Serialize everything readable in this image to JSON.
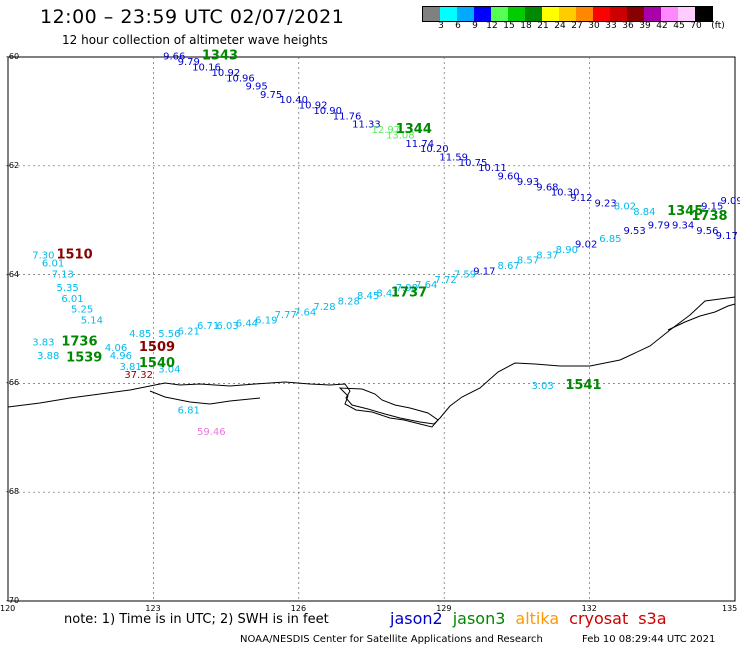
{
  "title": "12:00 – 23:59 UTC 02/07/2021",
  "subtitle": "12 hour collection of altimeter wave heights",
  "scale": {
    "unit": "(ft)",
    "swatches": [
      {
        "color": "#808080"
      },
      {
        "color": "#00ffff"
      },
      {
        "color": "#00aaff"
      },
      {
        "color": "#0000ff"
      },
      {
        "color": "#55ff55"
      },
      {
        "color": "#00cc00"
      },
      {
        "color": "#008800"
      },
      {
        "color": "#ffff00"
      },
      {
        "color": "#ffcc00"
      },
      {
        "color": "#ff8800"
      },
      {
        "color": "#ff0000"
      },
      {
        "color": "#cc0000"
      },
      {
        "color": "#880000"
      },
      {
        "color": "#aa00aa"
      },
      {
        "color": "#ff88ff"
      },
      {
        "color": "#ffccff"
      },
      {
        "color": "#000000"
      }
    ],
    "ticks": [
      "3",
      "6",
      "9",
      "12",
      "15",
      "18",
      "21",
      "24",
      "27",
      "30",
      "33",
      "36",
      "39",
      "42",
      "45",
      "70"
    ]
  },
  "axes": {
    "lat": [
      "-60",
      "-62",
      "-64",
      "-66",
      "-68",
      "-70"
    ],
    "lon": [
      "120",
      "123",
      "126",
      "129",
      "132",
      "135"
    ]
  },
  "note": "note:  1) Time is in UTC;  2) SWH is in feet",
  "legend": [
    {
      "name": "jason2",
      "color": "#0000cc"
    },
    {
      "name": "jason3",
      "color": "#008800"
    },
    {
      "name": "altika",
      "color": "#ff9900"
    },
    {
      "name": "cryosat",
      "color": "#cc0000"
    },
    {
      "name": "s3a",
      "color": "#cc0000"
    }
  ],
  "footer_left": "NOAA/NESDIS Center for Satellite Applications and Research",
  "footer_right": "Feb 10 08:29:44 UTC 2021",
  "passes": [
    {
      "label": "1343",
      "lon": 124.0,
      "lat": -60.05,
      "color": "#008800"
    },
    {
      "label": "1344",
      "lon": 128.0,
      "lat": -61.4,
      "color": "#008800"
    },
    {
      "label": "1345",
      "lon": 133.6,
      "lat": -62.9,
      "color": "#008800"
    },
    {
      "label": "1738",
      "lon": 134.1,
      "lat": -63.0,
      "color": "#008800"
    },
    {
      "label": "1737",
      "lon": 127.9,
      "lat": -64.4,
      "color": "#008800"
    },
    {
      "label": "1510",
      "lon": 121.0,
      "lat": -63.7,
      "color": "#880000"
    },
    {
      "label": "1736",
      "lon": 121.1,
      "lat": -65.3,
      "color": "#008800"
    },
    {
      "label": "1539",
      "lon": 121.2,
      "lat": -65.6,
      "color": "#008800"
    },
    {
      "label": "1509",
      "lon": 122.7,
      "lat": -65.4,
      "color": "#880000"
    },
    {
      "label": "1540",
      "lon": 122.7,
      "lat": -65.7,
      "color": "#008800"
    },
    {
      "label": "1541",
      "lon": 131.5,
      "lat": -66.1,
      "color": "#008800"
    }
  ],
  "values": [
    {
      "v": "9.66",
      "lon": 123.2,
      "lat": -60.05,
      "color": "#0000cc"
    },
    {
      "v": "9.79",
      "lon": 123.5,
      "lat": -60.15,
      "color": "#0000cc"
    },
    {
      "v": "10.16",
      "lon": 123.8,
      "lat": -60.25,
      "color": "#0000cc"
    },
    {
      "v": "10.92",
      "lon": 124.2,
      "lat": -60.35,
      "color": "#0000cc"
    },
    {
      "v": "10.96",
      "lon": 124.5,
      "lat": -60.45,
      "color": "#0000cc"
    },
    {
      "v": "9.95",
      "lon": 124.9,
      "lat": -60.6,
      "color": "#0000cc"
    },
    {
      "v": "9.75",
      "lon": 125.2,
      "lat": -60.75,
      "color": "#0000cc"
    },
    {
      "v": "10.40",
      "lon": 125.6,
      "lat": -60.85,
      "color": "#0000cc"
    },
    {
      "v": "10.92",
      "lon": 126.0,
      "lat": -60.95,
      "color": "#0000cc"
    },
    {
      "v": "10.90",
      "lon": 126.3,
      "lat": -61.05,
      "color": "#0000cc"
    },
    {
      "v": "11.76",
      "lon": 126.7,
      "lat": -61.15,
      "color": "#0000cc"
    },
    {
      "v": "11.33",
      "lon": 127.1,
      "lat": -61.3,
      "color": "#0000cc"
    },
    {
      "v": "12.97",
      "lon": 127.5,
      "lat": -61.4,
      "color": "#55ee55"
    },
    {
      "v": "13.08",
      "lon": 127.8,
      "lat": -61.5,
      "color": "#55ee55"
    },
    {
      "v": "11.74",
      "lon": 128.2,
      "lat": -61.65,
      "color": "#0000cc"
    },
    {
      "v": "10.20",
      "lon": 128.5,
      "lat": -61.75,
      "color": "#0000cc"
    },
    {
      "v": "11.59",
      "lon": 128.9,
      "lat": -61.9,
      "color": "#0000cc"
    },
    {
      "v": "10.75",
      "lon": 129.3,
      "lat": -62.0,
      "color": "#0000cc"
    },
    {
      "v": "10.11",
      "lon": 129.7,
      "lat": -62.1,
      "color": "#0000cc"
    },
    {
      "v": "9.60",
      "lon": 130.1,
      "lat": -62.25,
      "color": "#0000cc"
    },
    {
      "v": "9.93",
      "lon": 130.5,
      "lat": -62.35,
      "color": "#0000cc"
    },
    {
      "v": "9.68",
      "lon": 130.9,
      "lat": -62.45,
      "color": "#0000cc"
    },
    {
      "v": "10.30",
      "lon": 131.2,
      "lat": -62.55,
      "color": "#0000cc"
    },
    {
      "v": "9.12",
      "lon": 131.6,
      "lat": -62.65,
      "color": "#0000cc"
    },
    {
      "v": "9.23",
      "lon": 132.1,
      "lat": -62.75,
      "color": "#0000cc"
    },
    {
      "v": "8.02",
      "lon": 132.5,
      "lat": -62.8,
      "color": "#00bbee"
    },
    {
      "v": "8.84",
      "lon": 132.9,
      "lat": -62.9,
      "color": "#00bbee"
    },
    {
      "v": "9.15",
      "lon": 134.3,
      "lat": -62.8,
      "color": "#0000cc"
    },
    {
      "v": "9.09",
      "lon": 134.7,
      "lat": -62.7,
      "color": "#0000cc"
    },
    {
      "v": "9.79",
      "lon": 133.2,
      "lat": -63.15,
      "color": "#0000cc"
    },
    {
      "v": "9.53",
      "lon": 132.7,
      "lat": -63.25,
      "color": "#0000cc"
    },
    {
      "v": "9.34",
      "lon": 133.7,
      "lat": -63.15,
      "color": "#0000cc"
    },
    {
      "v": "9.56",
      "lon": 134.2,
      "lat": -63.25,
      "color": "#0000cc"
    },
    {
      "v": "9.17",
      "lon": 134.6,
      "lat": -63.35,
      "color": "#0000cc"
    },
    {
      "v": "6.85",
      "lon": 132.2,
      "lat": -63.4,
      "color": "#00bbee"
    },
    {
      "v": "9.02",
      "lon": 131.7,
      "lat": -63.5,
      "color": "#0000cc"
    },
    {
      "v": "8.90",
      "lon": 131.3,
      "lat": -63.6,
      "color": "#00bbee"
    },
    {
      "v": "8.37",
      "lon": 130.9,
      "lat": -63.7,
      "color": "#00bbee"
    },
    {
      "v": "8.57",
      "lon": 130.5,
      "lat": -63.8,
      "color": "#00bbee"
    },
    {
      "v": "8.67",
      "lon": 130.1,
      "lat": -63.9,
      "color": "#00bbee"
    },
    {
      "v": "9.17",
      "lon": 129.6,
      "lat": -64.0,
      "color": "#0000cc"
    },
    {
      "v": "7.59",
      "lon": 129.2,
      "lat": -64.05,
      "color": "#00bbee"
    },
    {
      "v": "7.72",
      "lon": 128.8,
      "lat": -64.15,
      "color": "#00bbee"
    },
    {
      "v": "7.64",
      "lon": 128.4,
      "lat": -64.25,
      "color": "#00bbee"
    },
    {
      "v": "7.98",
      "lon": 128.0,
      "lat": -64.3,
      "color": "#00bbee"
    },
    {
      "v": "8.41",
      "lon": 127.6,
      "lat": -64.4,
      "color": "#00bbee"
    },
    {
      "v": "8.45",
      "lon": 127.2,
      "lat": -64.45,
      "color": "#00bbee"
    },
    {
      "v": "8.28",
      "lon": 126.8,
      "lat": -64.55,
      "color": "#00bbee"
    },
    {
      "v": "7.28",
      "lon": 126.3,
      "lat": -64.65,
      "color": "#00bbee"
    },
    {
      "v": "7.64",
      "lon": 125.9,
      "lat": -64.75,
      "color": "#00bbee"
    },
    {
      "v": "7.77",
      "lon": 125.5,
      "lat": -64.8,
      "color": "#00bbee"
    },
    {
      "v": "6.19",
      "lon": 125.1,
      "lat": -64.9,
      "color": "#00bbee"
    },
    {
      "v": "6.44",
      "lon": 124.7,
      "lat": -64.95,
      "color": "#00bbee"
    },
    {
      "v": "6.03",
      "lon": 124.3,
      "lat": -65.0,
      "color": "#00bbee"
    },
    {
      "v": "6.71",
      "lon": 123.9,
      "lat": -65.0,
      "color": "#00bbee"
    },
    {
      "v": "6.21",
      "lon": 123.5,
      "lat": -65.1,
      "color": "#00bbee"
    },
    {
      "v": "5.56",
      "lon": 123.1,
      "lat": -65.15,
      "color": "#00bbee"
    },
    {
      "v": "7.30",
      "lon": 120.5,
      "lat": -63.7,
      "color": "#00bbee"
    },
    {
      "v": "6.01",
      "lon": 120.7,
      "lat": -63.85,
      "color": "#00bbee"
    },
    {
      "v": "7.13",
      "lon": 120.9,
      "lat": -64.05,
      "color": "#00bbee"
    },
    {
      "v": "5.35",
      "lon": 121.0,
      "lat": -64.3,
      "color": "#00bbee"
    },
    {
      "v": "6.01",
      "lon": 121.1,
      "lat": -64.5,
      "color": "#00bbee"
    },
    {
      "v": "5.25",
      "lon": 121.3,
      "lat": -64.7,
      "color": "#00bbee"
    },
    {
      "v": "5.14",
      "lon": 121.5,
      "lat": -64.9,
      "color": "#00bbee"
    },
    {
      "v": "4.85",
      "lon": 122.5,
      "lat": -65.15,
      "color": "#00bbee"
    },
    {
      "v": "3.83",
      "lon": 120.5,
      "lat": -65.3,
      "color": "#00bbee"
    },
    {
      "v": "4.06",
      "lon": 122.0,
      "lat": -65.4,
      "color": "#00bbee"
    },
    {
      "v": "4.96",
      "lon": 122.1,
      "lat": -65.55,
      "color": "#00bbee"
    },
    {
      "v": "3.88",
      "lon": 120.6,
      "lat": -65.55,
      "color": "#00bbee"
    },
    {
      "v": "3.81",
      "lon": 122.3,
      "lat": -65.75,
      "color": "#00bbee"
    },
    {
      "v": "37.32",
      "lon": 122.4,
      "lat": -65.9,
      "color": "#880000"
    },
    {
      "v": "3.04",
      "lon": 123.1,
      "lat": -65.8,
      "color": "#00bbee"
    },
    {
      "v": "3.03",
      "lon": 130.8,
      "lat": -66.1,
      "color": "#00bbee"
    },
    {
      "v": "6.81",
      "lon": 123.5,
      "lat": -66.55,
      "color": "#00bbee"
    },
    {
      "v": "59.46",
      "lon": 123.9,
      "lat": -66.95,
      "color": "#ee77dd"
    }
  ]
}
